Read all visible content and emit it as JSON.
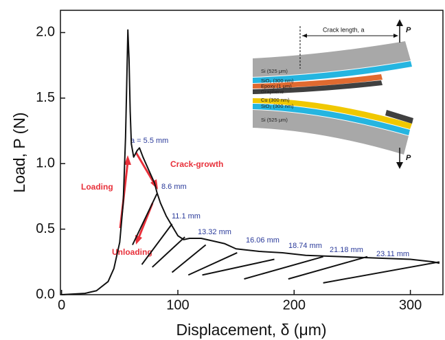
{
  "chart_data": {
    "type": "line",
    "x_label": "Displacement, δ (μm)",
    "y_label": "Load, P (N)",
    "xlim": [
      -1,
      328
    ],
    "ylim": [
      0,
      2.17
    ],
    "xticks": [
      0,
      100,
      200,
      300
    ],
    "yticks": [
      {
        "value": 0,
        "label": "0.0"
      },
      0.5,
      {
        "value": 1,
        "label": "1.0"
      },
      1.5,
      {
        "value": 2,
        "label": "2.0"
      }
    ],
    "color": "#111111",
    "series": [
      {
        "x": [
          0,
          20,
          30,
          40,
          45,
          50,
          53,
          55,
          56,
          57,
          58,
          59,
          60,
          62,
          65,
          67,
          70,
          75,
          80,
          82,
          85,
          90,
          94,
          100,
          105,
          110,
          120,
          130,
          140,
          150,
          170,
          190,
          210,
          240,
          270,
          300,
          320,
          325
        ],
        "values": [
          0,
          0.01,
          0.03,
          0.1,
          0.2,
          0.4,
          0.7,
          1.2,
          1.6,
          2.02,
          1.8,
          1.4,
          1.15,
          1.05,
          1.1,
          1.12,
          1.05,
          0.95,
          0.85,
          0.78,
          0.7,
          0.6,
          0.54,
          0.45,
          0.42,
          0.43,
          0.43,
          0.41,
          0.39,
          0.35,
          0.33,
          0.32,
          0.3,
          0.29,
          0.28,
          0.27,
          0.25,
          0.24
        ]
      },
      {
        "x": [
          61,
          82
        ],
        "values": [
          0.38,
          0.77
        ]
      },
      {
        "x": [
          69,
          95
        ],
        "values": [
          0.23,
          0.54
        ]
      },
      {
        "x": [
          78,
          106
        ],
        "values": [
          0.21,
          0.44
        ]
      },
      {
        "x": [
          95,
          124
        ],
        "values": [
          0.17,
          0.38
        ]
      },
      {
        "x": [
          109,
          151
        ],
        "values": [
          0.15,
          0.32
        ]
      },
      {
        "x": [
          121,
          183
        ],
        "values": [
          0.15,
          0.27
        ]
      },
      {
        "x": [
          157,
          225
        ],
        "values": [
          0.12,
          0.29
        ]
      },
      {
        "x": [
          195,
          263
        ],
        "values": [
          0.12,
          0.29
        ]
      },
      {
        "x": [
          225,
          325
        ],
        "values": [
          0.09,
          0.25
        ]
      }
    ],
    "crack_labels": [
      "a = 5.5 mm",
      "8.6 mm",
      "11.1 mm",
      "13.32 mm",
      "16.06 mm",
      "18.74 mm",
      "21.18 mm",
      "23.11 mm"
    ],
    "arrow_labels": [
      "Crack-growth",
      "Loading",
      "Unloading"
    ],
    "inset": {
      "crack": "Crack length, a",
      "load_top": "P",
      "load_bottom": "P",
      "layers": [
        "Si (525 μm)",
        "SiO₂ (300 nm)",
        "Epoxy (1 μm)",
        "Graphene",
        "Cu (300 nm)",
        "SiO₂ (300 nm)",
        "Si (525 μm)"
      ]
    }
  }
}
